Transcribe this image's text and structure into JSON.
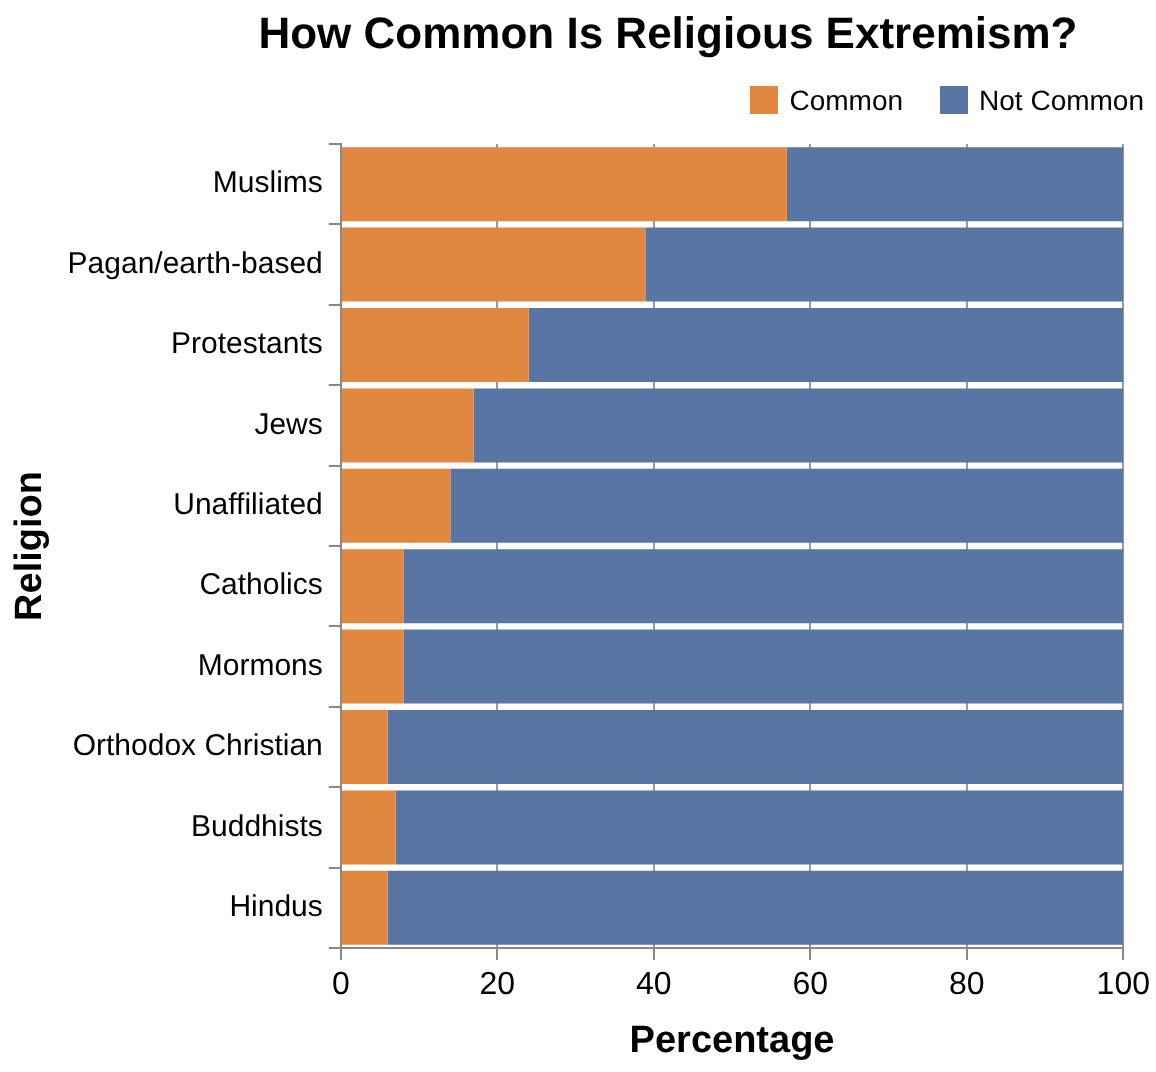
{
  "chart_data": {
    "type": "bar",
    "orientation": "horizontal",
    "stacked": true,
    "title": "How Common Is Religious Extremism?",
    "xlabel": "Percentage",
    "ylabel": "Religion",
    "categories": [
      "Muslims",
      "Pagan/earth-based",
      "Protestants",
      "Jews",
      "Unaffiliated",
      "Catholics",
      "Mormons",
      "Orthodox Christian",
      "Buddhists",
      "Hindus"
    ],
    "series": [
      {
        "name": "Common",
        "color": "#e0883f",
        "values": [
          57,
          39,
          24,
          17,
          14,
          8,
          8,
          6,
          7,
          6
        ]
      },
      {
        "name": "Not Common",
        "color": "#5875a4",
        "values": [
          43,
          61,
          76,
          83,
          86,
          92,
          92,
          94,
          93,
          94
        ]
      }
    ],
    "xlim": [
      0,
      100
    ],
    "xticks": [
      0,
      20,
      40,
      60,
      80,
      100
    ],
    "grid": "x",
    "legend": "top right"
  }
}
